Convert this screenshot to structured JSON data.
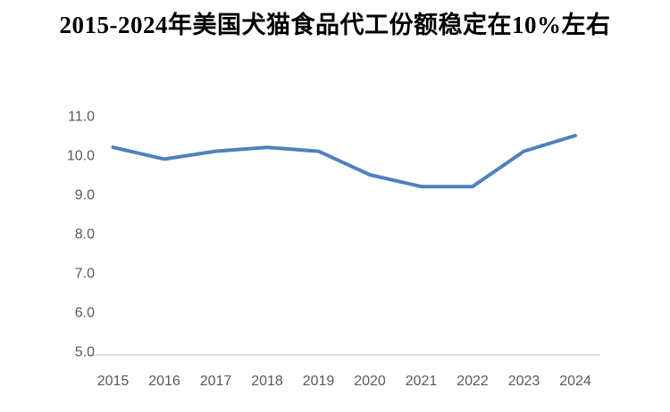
{
  "title": "2015-2024年美国犬猫食品代工份额稳定在10%左右",
  "colors": {
    "line": "#4f81bd",
    "axis_line": "#d9d9d9",
    "tick_text": "#595959",
    "title_text": "#000000",
    "background": "#ffffff"
  },
  "chart_data": {
    "type": "line",
    "title": "2015-2024年美国犬猫食品代工份额稳定在10%左右",
    "categories": [
      "2015",
      "2016",
      "2017",
      "2018",
      "2019",
      "2020",
      "2021",
      "2022",
      "2023",
      "2024"
    ],
    "values": [
      10.2,
      9.9,
      10.1,
      10.2,
      10.1,
      9.5,
      9.2,
      9.2,
      10.1,
      10.5
    ],
    "xlabel": "",
    "ylabel": "",
    "ylim": [
      5.0,
      11.0
    ],
    "y_ticks": [
      "5.0",
      "6.0",
      "7.0",
      "8.0",
      "9.0",
      "10.0",
      "11.0"
    ],
    "grid": false,
    "legend": false,
    "line_width": 4
  }
}
